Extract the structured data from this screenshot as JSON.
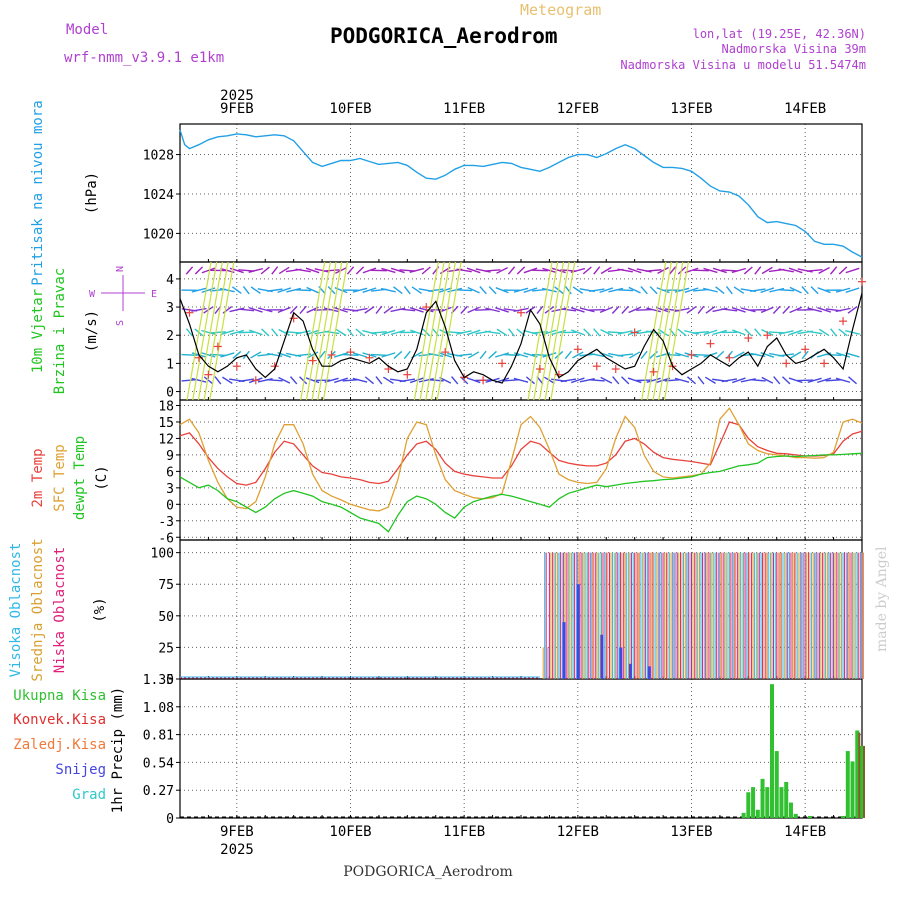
{
  "header": {
    "meteogram_label": "Meteogram",
    "station": "PODGORICA_Aerodrom",
    "model_label": "Model",
    "model_name": "wrf-nmm_v3.9.1 e1km",
    "lonlat": "lon,lat (19.25E, 42.36N)",
    "altitude": "Nadmorska Visina 39m",
    "model_altitude": "Nadmorska Visina u modelu 51.5474m",
    "footer_station": "PODGORICA_Aerodrom",
    "signature": "made by Angel"
  },
  "time_axis": {
    "year": "2025",
    "days": [
      "9FEB",
      "10FEB",
      "11FEB",
      "12FEB",
      "13FEB",
      "14FEB"
    ],
    "range_hours": [
      -12,
      132
    ]
  },
  "colors": {
    "pressure": "#22a0e6",
    "temp2m": "#e8423c",
    "sfc": "#dfa134",
    "dewpt": "#22c422",
    "high_cloud": "#30b8e8",
    "mid_cloud": "#d8a030",
    "low_cloud": "#e0207a",
    "total_precip": "#30c030",
    "conv_precip": "#e03030",
    "frozen_precip": "#f07a3a",
    "snow": "#4545e0",
    "hail": "#30c8c8",
    "wind_label": "#22c422",
    "dir_label": "#b040d0"
  },
  "chart_data": [
    {
      "type": "line",
      "name": "pressure",
      "ylabel_lines": [
        "Pritisak na nivou mora",
        "(hPa)"
      ],
      "yticks": [
        1020,
        1024,
        1028
      ],
      "ylim": [
        1017.1,
        1031.1
      ],
      "x": [
        -12,
        -11,
        -10,
        -8,
        -6,
        -4,
        -2,
        0,
        2,
        4,
        6,
        8,
        10,
        12,
        14,
        16,
        18,
        20,
        22,
        24,
        26,
        28,
        30,
        32,
        34,
        36,
        38,
        40,
        42,
        44,
        46,
        48,
        50,
        52,
        54,
        56,
        58,
        60,
        62,
        64,
        66,
        68,
        70,
        72,
        74,
        76,
        78,
        80,
        82,
        84,
        86,
        88,
        90,
        92,
        94,
        96,
        98,
        100,
        102,
        104,
        106,
        108,
        110,
        112,
        114,
        116,
        118,
        120,
        122,
        124,
        126,
        128,
        130,
        132
      ],
      "y": [
        1030.5,
        1029.0,
        1028.6,
        1029.0,
        1029.5,
        1029.8,
        1029.9,
        1030.1,
        1030.0,
        1029.8,
        1029.9,
        1030.0,
        1029.9,
        1029.4,
        1028.3,
        1027.2,
        1026.8,
        1027.1,
        1027.4,
        1027.4,
        1027.6,
        1027.3,
        1027.0,
        1027.1,
        1027.2,
        1026.9,
        1026.2,
        1025.6,
        1025.5,
        1025.9,
        1026.5,
        1026.9,
        1026.9,
        1026.8,
        1027.0,
        1027.2,
        1027.1,
        1026.7,
        1026.5,
        1026.3,
        1026.7,
        1027.2,
        1027.7,
        1028.0,
        1028.0,
        1027.7,
        1028.1,
        1028.6,
        1029.0,
        1028.6,
        1027.9,
        1027.2,
        1026.7,
        1026.7,
        1026.6,
        1026.3,
        1025.6,
        1024.8,
        1024.3,
        1024.2,
        1023.8,
        1022.9,
        1021.7,
        1021.1,
        1021.2,
        1021.0,
        1020.8,
        1020.2,
        1019.2,
        1018.9,
        1018.9,
        1018.7,
        1018.1,
        1017.6
      ]
    },
    {
      "type": "line",
      "name": "wind",
      "ylabel_lines": [
        "10m Vjetar",
        "Brzina i Pravac",
        "(m/s)"
      ],
      "compass": [
        "N",
        "S",
        "W",
        "E"
      ],
      "yticks": [
        0,
        1,
        2,
        3,
        4
      ],
      "ylim": [
        -0.3,
        4.6
      ],
      "x": [
        -12,
        -10,
        -8,
        -6,
        -4,
        -2,
        0,
        2,
        4,
        6,
        8,
        10,
        12,
        14,
        16,
        18,
        20,
        22,
        24,
        26,
        28,
        30,
        32,
        34,
        36,
        38,
        40,
        42,
        44,
        46,
        48,
        50,
        52,
        54,
        56,
        58,
        60,
        62,
        64,
        66,
        68,
        70,
        72,
        74,
        76,
        78,
        80,
        82,
        84,
        86,
        88,
        90,
        92,
        94,
        96,
        98,
        100,
        102,
        104,
        106,
        108,
        110,
        112,
        114,
        116,
        118,
        120,
        122,
        124,
        126,
        128,
        130,
        132
      ],
      "y": [
        3.3,
        2.4,
        1.3,
        0.9,
        0.7,
        0.9,
        1.2,
        1.3,
        0.8,
        0.5,
        0.8,
        1.8,
        2.8,
        2.5,
        1.5,
        0.9,
        0.9,
        1.1,
        1.2,
        1.1,
        1.0,
        1.2,
        0.9,
        0.7,
        0.8,
        1.5,
        2.8,
        3.2,
        2.3,
        1.1,
        0.5,
        0.7,
        0.6,
        0.4,
        0.3,
        0.9,
        1.7,
        2.9,
        2.4,
        1.2,
        0.5,
        0.7,
        1.1,
        1.3,
        1.5,
        1.2,
        1.0,
        0.8,
        0.9,
        1.6,
        2.2,
        1.8,
        0.9,
        0.6,
        0.8,
        1.0,
        1.3,
        1.1,
        0.9,
        1.2,
        1.4,
        0.9,
        1.6,
        1.9,
        1.3,
        1.0,
        1.1,
        1.3,
        1.5,
        1.2,
        0.8,
        2.2,
        3.5
      ],
      "obs_x": [
        -10,
        -8,
        -6,
        -4,
        0,
        4,
        8,
        12,
        16,
        20,
        24,
        28,
        32,
        36,
        40,
        44,
        48,
        52,
        56,
        60,
        64,
        68,
        72,
        76,
        80,
        84,
        88,
        92,
        96,
        100,
        104,
        108,
        112,
        116,
        120,
        124,
        128,
        132
      ],
      "obs_y": [
        2.8,
        1.2,
        0.6,
        1.6,
        0.9,
        0.4,
        0.9,
        2.6,
        1.1,
        1.3,
        1.4,
        1.2,
        0.8,
        0.6,
        3.0,
        1.4,
        0.5,
        0.4,
        1.0,
        2.8,
        0.8,
        0.6,
        1.5,
        0.9,
        0.8,
        2.1,
        0.7,
        0.9,
        1.3,
        1.7,
        1.2,
        1.9,
        2.0,
        1.0,
        1.5,
        1.0,
        2.5,
        3.9
      ],
      "barb_rows": [
        0.4,
        1.3,
        2.1,
        2.9,
        3.6,
        4.3
      ]
    },
    {
      "type": "line",
      "name": "temperature",
      "ylabel_lines": [
        "2m Temp",
        "SFC Temp",
        "dewpt Temp",
        "(C)"
      ],
      "yticks": [
        -6,
        -3,
        0,
        3,
        6,
        9,
        12,
        15,
        18
      ],
      "ylim": [
        -6.5,
        19
      ],
      "x": [
        -12,
        -10,
        -8,
        -6,
        -4,
        -2,
        0,
        2,
        4,
        6,
        8,
        10,
        12,
        14,
        16,
        18,
        20,
        22,
        24,
        26,
        28,
        30,
        32,
        34,
        36,
        38,
        40,
        42,
        44,
        46,
        48,
        50,
        52,
        54,
        56,
        58,
        60,
        62,
        64,
        66,
        68,
        70,
        72,
        74,
        76,
        78,
        80,
        82,
        84,
        86,
        88,
        90,
        92,
        94,
        96,
        98,
        100,
        102,
        104,
        106,
        108,
        110,
        112,
        114,
        116,
        118,
        120,
        122,
        124,
        126,
        128,
        130,
        132
      ],
      "series": [
        {
          "name": "2m Temp",
          "key": "temp2m",
          "y": [
            12.5,
            13.0,
            11.0,
            8.5,
            6.5,
            5.0,
            3.8,
            3.5,
            4.0,
            6.5,
            9.5,
            11.5,
            11.0,
            9.0,
            7.0,
            5.8,
            5.5,
            5.0,
            4.8,
            4.5,
            4.0,
            3.8,
            4.2,
            6.5,
            9.0,
            11.0,
            11.5,
            10.0,
            7.5,
            6.0,
            5.5,
            5.2,
            5.0,
            4.8,
            4.8,
            7.0,
            10.0,
            11.5,
            11.0,
            9.5,
            8.0,
            7.5,
            7.2,
            7.0,
            7.0,
            7.5,
            9.0,
            11.5,
            12.0,
            11.0,
            9.5,
            8.5,
            8.2,
            8.0,
            7.8,
            7.5,
            7.2,
            11.0,
            15.0,
            14.5,
            12.0,
            10.5,
            9.8,
            9.3,
            9.2,
            9.0,
            8.8,
            8.8,
            8.9,
            9.2,
            11.5,
            12.8,
            13.3
          ]
        },
        {
          "name": "SFC Temp",
          "key": "sfc",
          "y": [
            14.5,
            15.5,
            13.0,
            8.0,
            4.0,
            1.0,
            -0.5,
            -0.8,
            0.5,
            5.0,
            11.0,
            14.5,
            14.5,
            11.0,
            5.5,
            2.5,
            1.5,
            0.8,
            0.0,
            -0.5,
            -1.0,
            -1.2,
            -0.5,
            4.5,
            12.0,
            15.0,
            14.5,
            9.0,
            4.5,
            2.5,
            1.8,
            1.2,
            1.0,
            1.2,
            2.0,
            8.0,
            14.5,
            16.0,
            14.0,
            10.0,
            5.5,
            4.5,
            4.0,
            3.8,
            4.0,
            6.5,
            12.0,
            16.0,
            14.0,
            9.0,
            6.0,
            5.0,
            4.8,
            5.0,
            5.2,
            5.5,
            7.5,
            15.5,
            17.5,
            14.5,
            11.0,
            9.8,
            9.2,
            9.0,
            8.8,
            8.5,
            8.5,
            8.4,
            8.5,
            9.5,
            15.0,
            15.5,
            14.8
          ]
        },
        {
          "name": "dewpt Temp",
          "key": "dewpt",
          "y": [
            5.0,
            4.0,
            3.0,
            3.5,
            2.5,
            1.0,
            0.5,
            -0.5,
            -1.5,
            -0.5,
            1.0,
            2.0,
            2.5,
            2.0,
            1.5,
            0.5,
            0.0,
            -0.5,
            -1.5,
            -2.5,
            -3.0,
            -3.5,
            -5.0,
            -2.0,
            0.5,
            1.5,
            1.0,
            0.0,
            -1.5,
            -2.5,
            -0.5,
            0.5,
            1.0,
            1.5,
            1.8,
            1.5,
            1.0,
            0.5,
            0.0,
            -0.5,
            1.0,
            2.0,
            2.5,
            3.0,
            3.5,
            3.2,
            3.5,
            3.8,
            4.0,
            4.2,
            4.3,
            4.5,
            4.6,
            4.8,
            5.0,
            5.5,
            5.8,
            6.0,
            6.5,
            7.0,
            7.2,
            7.5,
            8.5,
            8.7,
            8.8,
            8.7,
            8.8,
            8.9,
            9.0,
            9.0,
            9.1,
            9.2,
            9.3
          ]
        }
      ]
    },
    {
      "type": "bar",
      "name": "cloud",
      "ylabel_lines": [
        "Visoka Oblacnost",
        "Srednja Oblacnost",
        "Niska Oblacnost",
        "(%)"
      ],
      "yticks": [
        0,
        25,
        50,
        75,
        100
      ],
      "ylim": [
        0,
        110
      ],
      "start_x": 65,
      "end_x": 132,
      "step": 1,
      "dry_until": 64
    },
    {
      "type": "bar",
      "name": "precip",
      "ylabel": "1hr Precip (mm)",
      "legend": [
        "Ukupna Kisa",
        "Konvek.Kisa",
        "Zaledj.Kisa",
        "Snijeg",
        "Grad"
      ],
      "yticks": [
        0,
        0.27,
        0.54,
        0.81,
        1.08,
        1.35
      ],
      "ylim": [
        0,
        1.35
      ],
      "bars": [
        {
          "x": 107,
          "y": 0.05
        },
        {
          "x": 108,
          "y": 0.25
        },
        {
          "x": 109,
          "y": 0.3
        },
        {
          "x": 110,
          "y": 0.08
        },
        {
          "x": 111,
          "y": 0.38
        },
        {
          "x": 112,
          "y": 0.3
        },
        {
          "x": 113,
          "y": 1.3
        },
        {
          "x": 114,
          "y": 0.65
        },
        {
          "x": 115,
          "y": 0.3
        },
        {
          "x": 116,
          "y": 0.35
        },
        {
          "x": 117,
          "y": 0.15
        },
        {
          "x": 118,
          "y": 0.04
        },
        {
          "x": 121,
          "y": 0.02
        },
        {
          "x": 128,
          "y": 0.02
        },
        {
          "x": 129,
          "y": 0.65
        },
        {
          "x": 130,
          "y": 0.55
        },
        {
          "x": 131,
          "y": 0.85
        },
        {
          "x": 132,
          "y": 0.7
        }
      ],
      "conv_bars": [
        {
          "x": 131,
          "y": 0.83
        },
        {
          "x": 132,
          "y": 0.7
        }
      ]
    }
  ]
}
